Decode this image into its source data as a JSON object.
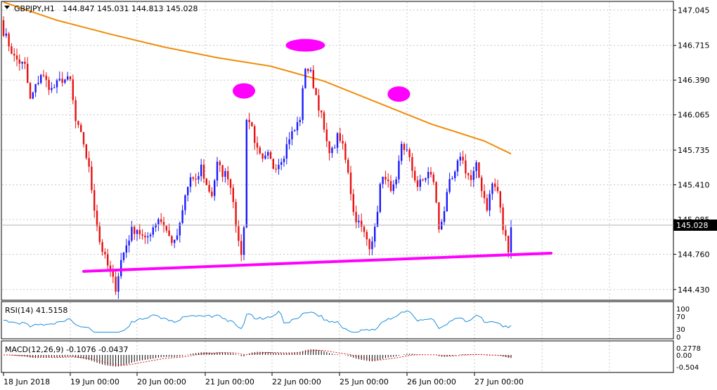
{
  "header": {
    "symbol": "GBPJPY,H1",
    "ohlc": "144.847 145.031 144.813 145.028"
  },
  "price_axis": {
    "labels": [
      "147.045",
      "146.715",
      "146.390",
      "146.065",
      "145.735",
      "145.410",
      "145.085",
      "144.760",
      "144.430"
    ],
    "current_price": "145.028"
  },
  "time_axis": {
    "labels": [
      "18 Jun 2018",
      "19 Jun 00:00",
      "20 Jun 00:00",
      "21 Jun 00:00",
      "22 Jun 00:00",
      "25 Jun 00:00",
      "26 Jun 00:00",
      "27 Jun 00:00"
    ]
  },
  "rsi": {
    "title": "RSI(14) 41.5158",
    "levels": [
      "100",
      "70",
      "30",
      "0"
    ]
  },
  "macd": {
    "title": "MACD(12,26,9) -0.1076 -0.0437",
    "levels": [
      "0.2778",
      "0.00",
      "-0.504"
    ]
  },
  "colors": {
    "bull": "#1a1aff",
    "bear": "#e81010",
    "ma": "#f08c0a",
    "trendline": "#ff00ff",
    "rsi_line": "#1e8fd8",
    "macd_signal": "#e81010",
    "grid": "#c8c8c8",
    "bg": "#ffffff"
  },
  "chart_data": {
    "type": "candlestick",
    "symbol": "GBPJPY",
    "timeframe": "H1",
    "ylim": [
      144.33,
      147.12
    ],
    "overlays": [
      "moving average",
      "support trendline",
      "three peak markers"
    ],
    "moving_average": [
      [
        0,
        147.12
      ],
      [
        20,
        146.95
      ],
      [
        40,
        146.82
      ],
      [
        60,
        146.7
      ],
      [
        80,
        146.6
      ],
      [
        100,
        146.52
      ],
      [
        120,
        146.38
      ],
      [
        140,
        146.18
      ],
      [
        160,
        145.98
      ],
      [
        180,
        145.82
      ],
      [
        190,
        145.7
      ]
    ],
    "trendline": [
      [
        30,
        144.6
      ],
      [
        205,
        144.77
      ]
    ],
    "peaks": [
      {
        "x": 90,
        "price": 146.23
      },
      {
        "x": 113,
        "price": 146.67
      },
      {
        "x": 148,
        "price": 146.2
      }
    ],
    "key_points": [
      [
        0,
        146.85
      ],
      [
        4,
        146.6
      ],
      [
        8,
        146.52
      ],
      [
        10,
        146.2
      ],
      [
        14,
        146.45
      ],
      [
        18,
        146.3
      ],
      [
        22,
        146.4
      ],
      [
        25,
        146.38
      ],
      [
        27,
        146.0
      ],
      [
        30,
        145.8
      ],
      [
        32,
        145.55
      ],
      [
        34,
        145.2
      ],
      [
        36,
        144.88
      ],
      [
        38,
        144.72
      ],
      [
        40,
        144.58
      ],
      [
        42,
        144.45
      ],
      [
        44,
        144.7
      ],
      [
        46,
        144.85
      ],
      [
        48,
        144.98
      ],
      [
        50,
        145.0
      ],
      [
        53,
        144.88
      ],
      [
        56,
        145.02
      ],
      [
        58,
        145.1
      ],
      [
        60,
        145.04
      ],
      [
        62,
        144.92
      ],
      [
        64,
        144.86
      ],
      [
        66,
        145.02
      ],
      [
        68,
        145.3
      ],
      [
        70,
        145.48
      ],
      [
        72,
        145.42
      ],
      [
        74,
        145.58
      ],
      [
        76,
        145.4
      ],
      [
        78,
        145.32
      ],
      [
        80,
        145.6
      ],
      [
        82,
        145.52
      ],
      [
        84,
        145.5
      ],
      [
        86,
        145.28
      ],
      [
        88,
        144.84
      ],
      [
        89,
        144.78
      ],
      [
        90,
        145.0
      ],
      [
        91,
        146.05
      ],
      [
        93,
        145.95
      ],
      [
        95,
        145.72
      ],
      [
        97,
        145.62
      ],
      [
        99,
        145.68
      ],
      [
        101,
        145.58
      ],
      [
        103,
        145.62
      ],
      [
        105,
        145.7
      ],
      [
        107,
        145.86
      ],
      [
        109,
        145.92
      ],
      [
        111,
        146.04
      ],
      [
        113,
        146.52
      ],
      [
        115,
        146.45
      ],
      [
        117,
        146.25
      ],
      [
        119,
        146.05
      ],
      [
        121,
        145.78
      ],
      [
        123,
        145.72
      ],
      [
        125,
        145.85
      ],
      [
        127,
        145.78
      ],
      [
        129,
        145.55
      ],
      [
        131,
        145.15
      ],
      [
        133,
        145.05
      ],
      [
        135,
        144.95
      ],
      [
        137,
        144.85
      ],
      [
        139,
        144.98
      ],
      [
        141,
        145.4
      ],
      [
        143,
        145.5
      ],
      [
        145,
        145.32
      ],
      [
        147,
        145.42
      ],
      [
        149,
        145.8
      ],
      [
        151,
        145.72
      ],
      [
        153,
        145.55
      ],
      [
        155,
        145.4
      ],
      [
        157,
        145.45
      ],
      [
        159,
        145.52
      ],
      [
        161,
        145.45
      ],
      [
        163,
        145.0
      ],
      [
        165,
        145.18
      ],
      [
        167,
        145.42
      ],
      [
        169,
        145.5
      ],
      [
        171,
        145.7
      ],
      [
        173,
        145.55
      ],
      [
        175,
        145.45
      ],
      [
        177,
        145.58
      ],
      [
        179,
        145.38
      ],
      [
        181,
        145.2
      ],
      [
        183,
        145.42
      ],
      [
        185,
        145.35
      ],
      [
        187,
        145.0
      ],
      [
        189,
        144.82
      ],
      [
        190,
        145.03
      ]
    ]
  }
}
